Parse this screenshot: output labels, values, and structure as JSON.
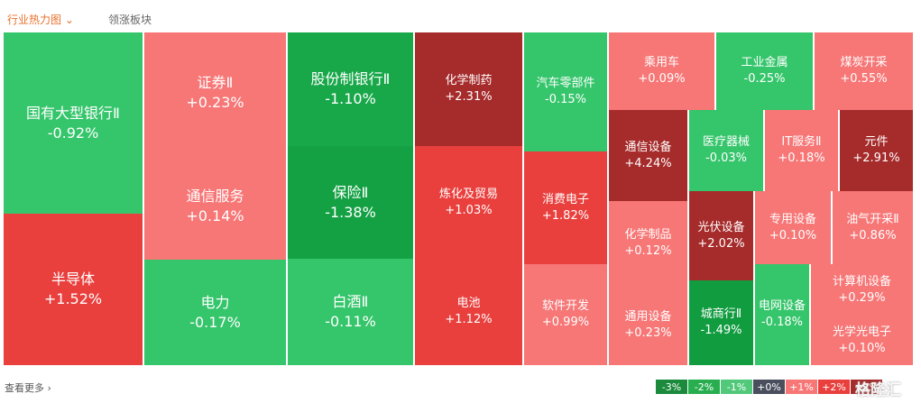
{
  "tabs": [
    "行业热力图",
    "领涨板块"
  ],
  "footer": "查看更多",
  "watermark": "格隆汇",
  "chart_data": {
    "type": "treemap",
    "categories": [
      "国有大型银行Ⅱ",
      "半导体",
      "证券Ⅱ",
      "通信服务",
      "电力",
      "股份制银行Ⅱ",
      "保险Ⅱ",
      "白酒Ⅱ",
      "化学制药",
      "炼化及贸易",
      "电池",
      "汽车零部件",
      "消费电子",
      "软件开发",
      "乘用车",
      "工业金属",
      "煤炭开采",
      "通信设备",
      "医疗器械",
      "IT服务Ⅱ",
      "元件",
      "化学制品",
      "光伏设备",
      "专用设备",
      "油气开采Ⅱ",
      "通用设备",
      "城商行Ⅱ",
      "电网设备",
      "计算机设备",
      "光学光电子"
    ],
    "values": [
      -0.92,
      1.52,
      0.23,
      0.14,
      -0.17,
      -1.1,
      -1.38,
      -0.11,
      2.31,
      1.03,
      1.12,
      -0.15,
      1.82,
      0.99,
      0.09,
      -0.25,
      0.55,
      4.24,
      -0.03,
      0.18,
      2.91,
      0.12,
      2.02,
      0.1,
      0.86,
      0.23,
      -1.49,
      -0.18,
      0.29,
      0.1
    ],
    "value_labels": [
      "-0.92%",
      "+1.52%",
      "+0.23%",
      "+0.14%",
      "-0.17%",
      "-1.10%",
      "-1.38%",
      "-0.11%",
      "+2.31%",
      "+1.03%",
      "+1.12%",
      "-0.15%",
      "+1.82%",
      "+0.99%",
      "+0.09%",
      "-0.25%",
      "+0.55%",
      "+4.24%",
      "-0.03%",
      "+0.18%",
      "+2.91%",
      "+0.12%",
      "+2.02%",
      "+0.10%",
      "+0.86%",
      "+0.23%",
      "-1.49%",
      "-0.18%",
      "+0.29%",
      "+0.10%"
    ],
    "colors": [
      "#35c56b",
      "#e9403e",
      "#f77676",
      "#f77676",
      "#35c56b",
      "#18a84a",
      "#14a144",
      "#35c56b",
      "#a62b2b",
      "#e9403e",
      "#e9403e",
      "#35c56b",
      "#e9403e",
      "#f77676",
      "#f77676",
      "#35c56b",
      "#f77676",
      "#a62b2b",
      "#35c56b",
      "#f77676",
      "#a62b2b",
      "#f77676",
      "#a62b2b",
      "#f77676",
      "#f77676",
      "#f77676",
      "#109c3f",
      "#35c56b",
      "#f77676",
      "#f77676"
    ],
    "legend": {
      "values": [
        -3,
        -2,
        -1,
        0,
        1,
        2,
        3
      ],
      "labels": [
        "-3%",
        "-2%",
        "-1%",
        "+0%",
        "+1%",
        "+2%",
        "+3%"
      ],
      "colors": [
        "#1b8a3c",
        "#28ae4f",
        "#52c97a",
        "#4a4f5e",
        "#f77676",
        "#e9403e",
        "#a62b2b"
      ]
    }
  }
}
